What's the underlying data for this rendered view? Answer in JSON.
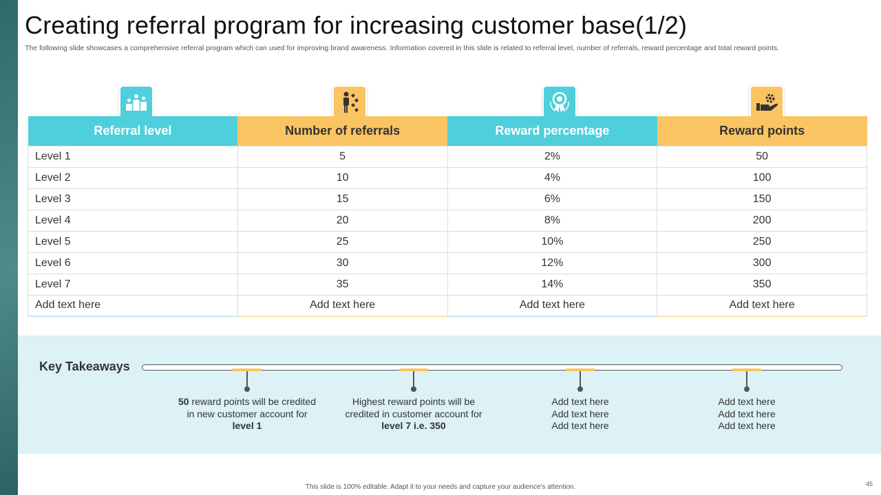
{
  "slide": {
    "title": "Creating referral program for increasing customer base(1/2)",
    "subtitle": "The following slide showcases a comprehensive referral program which can used for improving brand awareness. Information covered in this slide is related to referral level, number of referrals, reward percentage and total reward points.",
    "footer": "This slide is 100% editable.  Adapt it to your needs and capture your audience's attention.",
    "page_number": "45"
  },
  "colors": {
    "teal": "#4fcfdc",
    "amber": "#fbc463",
    "panel": "#dcf2f5",
    "strip": "#3f7d7c"
  },
  "table": {
    "icons": [
      "podium-icon",
      "person-steps-icon",
      "award-badge-icon",
      "hand-gear-icon"
    ],
    "headers": [
      "Referral level",
      "Number of referrals",
      "Reward percentage",
      "Reward points"
    ],
    "rows": [
      [
        "Level 1",
        "5",
        "2%",
        "50"
      ],
      [
        "Level 2",
        "10",
        "4%",
        "100"
      ],
      [
        "Level 3",
        "15",
        "6%",
        "150"
      ],
      [
        "Level 4",
        "20",
        "8%",
        "200"
      ],
      [
        "Level 5",
        "25",
        "10%",
        "250"
      ],
      [
        "Level 6",
        "30",
        "12%",
        "300"
      ],
      [
        "Level 7",
        "35",
        "14%",
        "350"
      ],
      [
        "Add text here",
        "Add text here",
        "Add text here",
        "Add text here"
      ]
    ]
  },
  "takeaways": {
    "title": "Key Takeaways",
    "items": [
      {
        "parts": [
          {
            "t": "50",
            "b": true
          },
          {
            "t": " reward points will be credited in new customer account for ",
            "b": false
          },
          {
            "t": "level 1",
            "b": true
          }
        ]
      },
      {
        "parts": [
          {
            "t": "Highest reward points will be credited in customer account for ",
            "b": false
          },
          {
            "t": "level 7 i.e. 350",
            "b": true
          }
        ]
      },
      {
        "lines": [
          "Add text here",
          "Add text here",
          "Add text here"
        ]
      },
      {
        "lines": [
          "Add text here",
          "Add text here",
          "Add text here"
        ]
      }
    ]
  }
}
